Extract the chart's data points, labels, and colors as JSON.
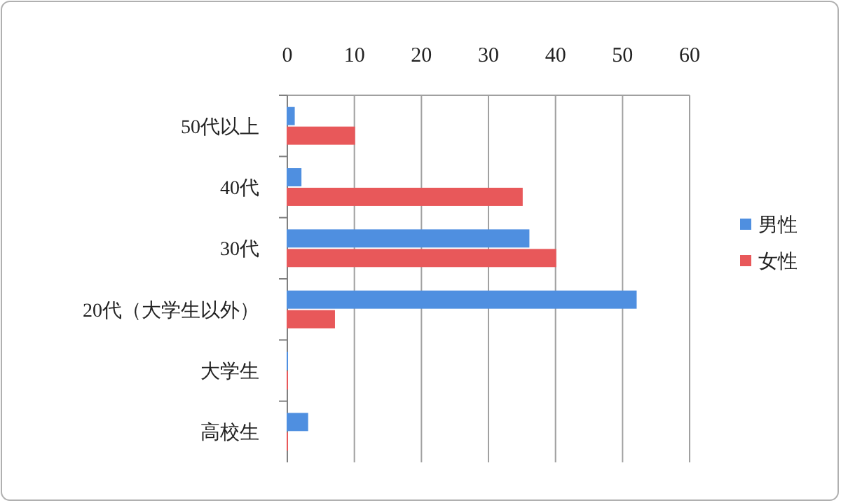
{
  "chart_data": {
    "type": "bar",
    "orientation": "horizontal",
    "categories": [
      "50代以上",
      "40代",
      "30代",
      "20代（大学生以外）",
      "大学生",
      "高校生"
    ],
    "series": [
      {
        "name": "男性",
        "color": "#4f8fe0",
        "values": [
          1,
          2,
          36,
          52,
          0,
          3
        ]
      },
      {
        "name": "女性",
        "color": "#e8585a",
        "values": [
          10,
          35,
          40,
          7,
          0,
          0
        ]
      }
    ],
    "xlim": [
      0,
      60
    ],
    "xticks": [
      0,
      10,
      20,
      30,
      40,
      50,
      60
    ],
    "grid": "x",
    "legend": "right"
  }
}
